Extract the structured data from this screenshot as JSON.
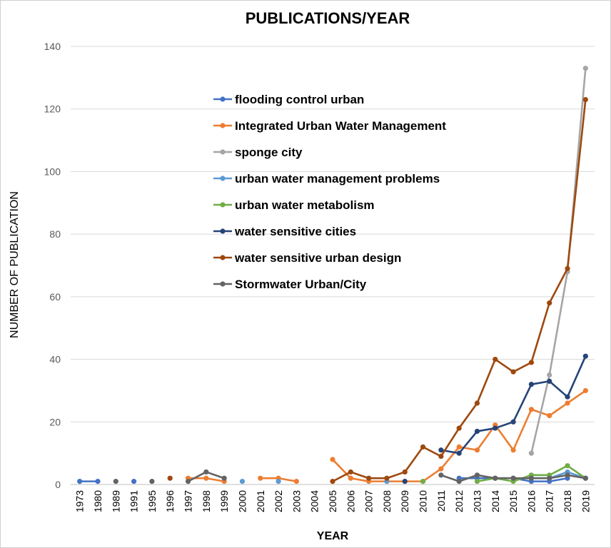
{
  "chart_data": {
    "type": "line",
    "title": "PUBLICATIONS/YEAR",
    "xlabel": "YEAR",
    "ylabel": "NUMBER OF PUBLICATION",
    "ylim": [
      0,
      140
    ],
    "yticks": [
      0,
      20,
      40,
      60,
      80,
      100,
      120,
      140
    ],
    "grid": "horizontal",
    "legend_position": "upper-center",
    "categories": [
      "1973",
      "1980",
      "1989",
      "1991",
      "1995",
      "1996",
      "1997",
      "1998",
      "1999",
      "2000",
      "2001",
      "2002",
      "2003",
      "2004",
      "2005",
      "2006",
      "2007",
      "2008",
      "2009",
      "2010",
      "2011",
      "2012",
      "2013",
      "2014",
      "2015",
      "2016",
      "2017",
      "2018",
      "2019"
    ],
    "series": [
      {
        "name": "flooding control urban",
        "color": "#4472C4",
        "values": [
          1,
          1,
          null,
          1,
          null,
          null,
          null,
          null,
          null,
          null,
          null,
          null,
          null,
          null,
          null,
          null,
          null,
          null,
          null,
          null,
          null,
          2,
          2,
          2,
          2,
          1,
          1,
          2,
          null
        ]
      },
      {
        "name": "Integrated Urban Water Management",
        "color": "#ED7D31",
        "values": [
          null,
          null,
          null,
          null,
          null,
          null,
          2,
          2,
          1,
          null,
          2,
          2,
          1,
          null,
          8,
          2,
          1,
          1,
          1,
          1,
          5,
          12,
          11,
          19,
          11,
          24,
          22,
          26,
          30
        ]
      },
      {
        "name": "sponge city",
        "color": "#A5A5A5",
        "values": [
          null,
          null,
          null,
          null,
          null,
          null,
          null,
          null,
          null,
          null,
          null,
          null,
          null,
          null,
          null,
          null,
          null,
          null,
          null,
          null,
          null,
          null,
          null,
          null,
          null,
          10,
          35,
          68,
          133
        ]
      },
      {
        "name": "urban water management problems",
        "color": "#5B9BD5",
        "values": [
          null,
          null,
          null,
          null,
          null,
          null,
          null,
          null,
          null,
          1,
          null,
          1,
          null,
          null,
          null,
          null,
          null,
          1,
          null,
          null,
          null,
          null,
          null,
          null,
          null,
          2,
          2,
          4,
          2
        ]
      },
      {
        "name": "urban water metabolism",
        "color": "#70AD47",
        "values": [
          null,
          null,
          null,
          null,
          null,
          null,
          null,
          null,
          null,
          null,
          null,
          null,
          null,
          null,
          null,
          null,
          null,
          null,
          null,
          1,
          null,
          null,
          1,
          2,
          1,
          3,
          3,
          6,
          2
        ]
      },
      {
        "name": "water sensitive cities",
        "color": "#264478",
        "values": [
          null,
          null,
          null,
          null,
          null,
          null,
          null,
          null,
          null,
          null,
          null,
          null,
          null,
          null,
          null,
          null,
          null,
          null,
          1,
          null,
          11,
          10,
          17,
          18,
          20,
          32,
          33,
          28,
          41
        ]
      },
      {
        "name": "water sensitive urban design",
        "color": "#9E480E",
        "values": [
          null,
          null,
          null,
          null,
          null,
          2,
          null,
          null,
          null,
          null,
          null,
          null,
          null,
          null,
          1,
          4,
          2,
          2,
          4,
          12,
          9,
          18,
          26,
          40,
          36,
          39,
          58,
          69,
          123
        ]
      },
      {
        "name": "Stormwater Urban/City",
        "color": "#636363",
        "values": [
          null,
          null,
          1,
          null,
          1,
          null,
          1,
          4,
          2,
          null,
          null,
          null,
          null,
          null,
          null,
          null,
          null,
          null,
          null,
          null,
          3,
          1,
          3,
          2,
          2,
          2,
          2,
          3,
          2
        ]
      }
    ]
  }
}
